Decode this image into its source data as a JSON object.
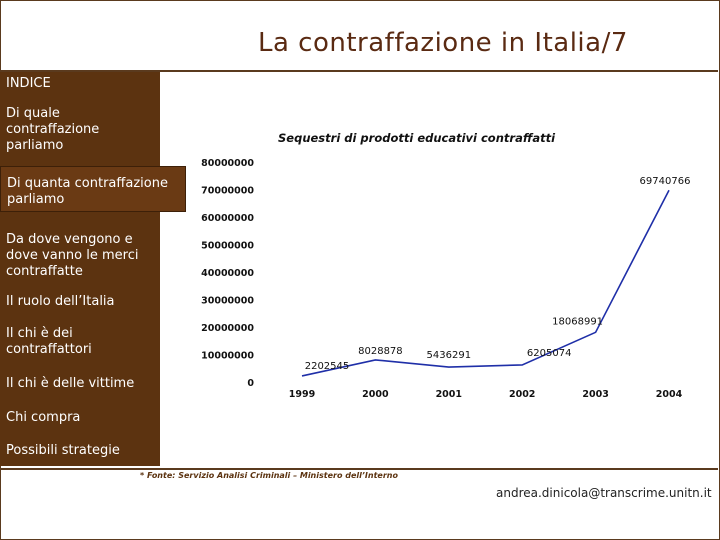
{
  "slide": {
    "title": "La contraffazione in Italia/7",
    "footer_note": "* Fonte: Servizio Analisi Criminali – Ministero dell’Interno",
    "email": "andrea.dinicola@transcrime.unitn.it"
  },
  "sidebar": {
    "header": "INDICE",
    "items": [
      {
        "label": "Di quale contraffazione parliamo",
        "active": false
      },
      {
        "label": "Di quanta contraffazione parliamo",
        "active": true
      },
      {
        "label": "Da dove vengono e dove vanno le merci contraffatte",
        "active": false
      },
      {
        "label": "Il ruolo dell’Italia",
        "active": false
      },
      {
        "label": "Il chi è dei contraffattori",
        "active": false
      },
      {
        "label": "Il chi è delle vittime",
        "active": false
      },
      {
        "label": "Chi compra",
        "active": false
      },
      {
        "label": "Possibili strategie",
        "active": false
      }
    ]
  },
  "colors": {
    "sidebar": "#5c3310",
    "accent": "#5a2a12",
    "line": "#1f2fa8"
  },
  "chart_data": {
    "type": "line",
    "title": "Sequestri di prodotti educativi contraffatti",
    "x": [
      "1999",
      "2000",
      "2001",
      "2002",
      "2003",
      "2004"
    ],
    "series": [
      {
        "values": [
          2202545,
          8028878,
          5436291,
          6205074,
          18068991,
          69740766
        ]
      }
    ],
    "data_labels": [
      "2202545",
      "8028878",
      "5436291",
      "6205074",
      "18068991",
      "69740766"
    ],
    "y_ticks": [
      "0",
      "10000000",
      "20000000",
      "30000000",
      "40000000",
      "50000000",
      "60000000",
      "70000000",
      "80000000"
    ],
    "ylim": [
      0,
      80000000
    ],
    "grid": false
  }
}
